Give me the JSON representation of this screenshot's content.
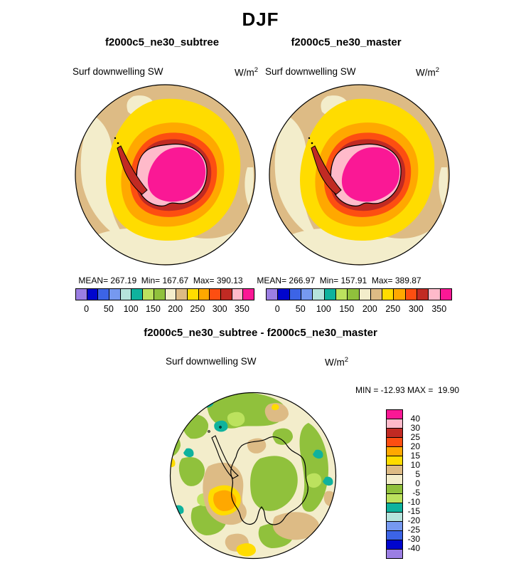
{
  "page_title": "DJF",
  "panels": [
    {
      "title": "f2000c5_ne30_subtree",
      "field_label": "Surf downwelling SW",
      "units_base": "W/m",
      "units_exp": "2",
      "stats": "MEAN= 267.19  Min= 167.67  Max= 390.13"
    },
    {
      "title": "f2000c5_ne30_master",
      "field_label": "Surf downwelling SW",
      "units_base": "W/m",
      "units_exp": "2",
      "stats": "MEAN= 266.97  Min= 157.91  Max= 389.87"
    }
  ],
  "colorbar": {
    "colors": [
      "#9b7ee3",
      "#0005cd",
      "#3c64e6",
      "#7699f0",
      "#b5e3dc",
      "#0fb29d",
      "#bce25e",
      "#90c13c",
      "#f3edcb",
      "#ddbb85",
      "#ffdc00",
      "#ffa800",
      "#fd4e11",
      "#c12a23",
      "#ffbaca",
      "#fa1895"
    ],
    "tick_labels": [
      "0",
      "50",
      "100",
      "150",
      "200",
      "250",
      "300",
      "350"
    ]
  },
  "diff": {
    "title": "f2000c5_ne30_subtree - f2000c5_ne30_master",
    "field_label": "Surf downwelling SW",
    "units_base": "W/m",
    "units_exp": "2",
    "minmax": "MIN = -12.93 MAX =  19.90",
    "colorbar": {
      "colors_top_to_bottom": [
        "#fa1895",
        "#ffbaca",
        "#c12a23",
        "#fd4e11",
        "#ffa800",
        "#ffdc00",
        "#ddbb85",
        "#f3edcb",
        "#90c13c",
        "#bce25e",
        "#0fb29d",
        "#b5e3dc",
        "#7699f0",
        "#3c64e6",
        "#0005cd",
        "#9b7ee3"
      ],
      "labels_top_to_bottom": [
        "40",
        "30",
        "25",
        "20",
        "15",
        "10",
        "5",
        "0",
        "-5",
        "-10",
        "-15",
        "-20",
        "-25",
        "-30",
        "-40"
      ]
    }
  },
  "chart_data": [
    {
      "type": "heatmap",
      "subtype": "south-polar-stereographic-contour-map",
      "season": "DJF",
      "title": "f2000c5_ne30_subtree",
      "variable": "Surf downwelling SW",
      "units": "W/m2",
      "mean": 267.19,
      "min": 167.67,
      "max": 390.13,
      "contour_levels": [
        0,
        25,
        50,
        75,
        100,
        125,
        150,
        175,
        200,
        225,
        250,
        275,
        300,
        325,
        350
      ],
      "tick_labels": [
        0,
        50,
        100,
        150,
        200,
        250,
        300,
        350
      ],
      "legend_position": "bottom"
    },
    {
      "type": "heatmap",
      "subtype": "south-polar-stereographic-contour-map",
      "season": "DJF",
      "title": "f2000c5_ne30_master",
      "variable": "Surf downwelling SW",
      "units": "W/m2",
      "mean": 266.97,
      "min": 157.91,
      "max": 389.87,
      "contour_levels": [
        0,
        25,
        50,
        75,
        100,
        125,
        150,
        175,
        200,
        225,
        250,
        275,
        300,
        325,
        350
      ],
      "tick_labels": [
        0,
        50,
        100,
        150,
        200,
        250,
        300,
        350
      ],
      "legend_position": "bottom"
    },
    {
      "type": "heatmap",
      "subtype": "south-polar-stereographic-contour-map",
      "season": "DJF",
      "title": "f2000c5_ne30_subtree - f2000c5_ne30_master",
      "variable": "Surf downwelling SW",
      "units": "W/m2",
      "min": -12.93,
      "max": 19.9,
      "contour_levels": [
        -40,
        -30,
        -25,
        -20,
        -15,
        -10,
        -5,
        0,
        5,
        10,
        15,
        20,
        25,
        30,
        40
      ],
      "legend_position": "right"
    }
  ]
}
